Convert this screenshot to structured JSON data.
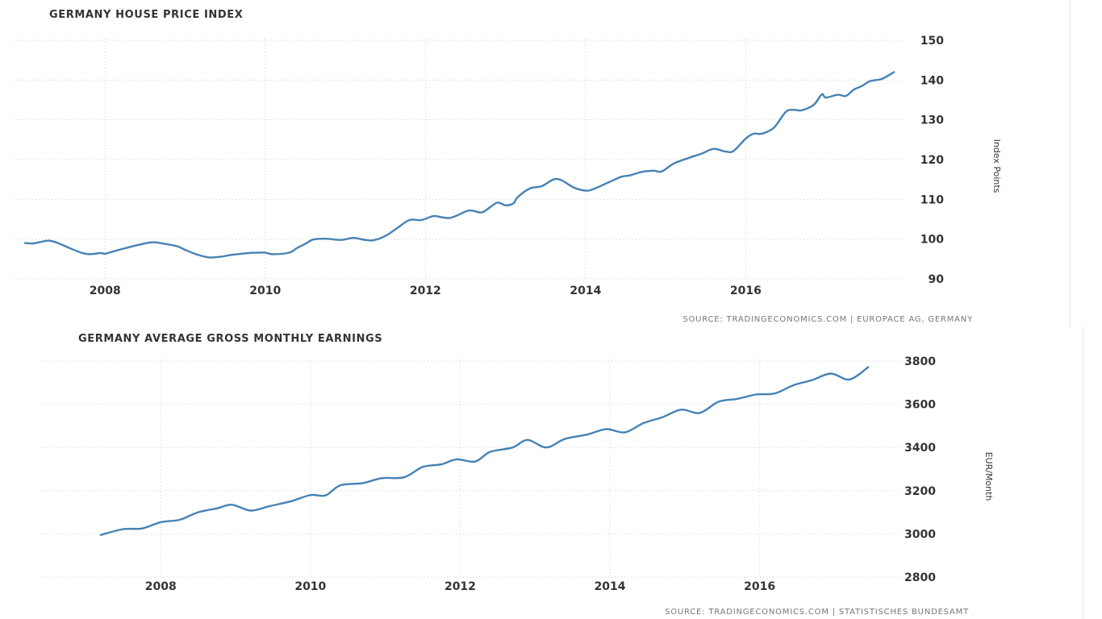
{
  "chart_data": [
    {
      "type": "line",
      "title": "GERMANY HOUSE PRICE INDEX",
      "source": "SOURCE: TRADINGECONOMICS.COM | EUROPACE AG, GERMANY",
      "ylabel": "Index Points",
      "xlabel": "",
      "grid": true,
      "yaxis_side": "right",
      "xlim": [
        2006.95,
        2017.95
      ],
      "ylim": [
        90,
        150
      ],
      "x_ticks": [
        2008,
        2010,
        2012,
        2014,
        2016
      ],
      "x_tick_labels": [
        "2008",
        "2010",
        "2012",
        "2014",
        "2016"
      ],
      "y_ticks": [
        90,
        100,
        110,
        120,
        130,
        140,
        150
      ],
      "y_tick_labels": [
        "90",
        "100",
        "110",
        "120",
        "130",
        "140",
        "150"
      ],
      "line_color": "#4682b4",
      "series": [
        {
          "x": [
            2007.0,
            2007.1,
            2007.2,
            2007.3,
            2007.4,
            2007.55,
            2007.7,
            2007.8,
            2007.95,
            2008.0,
            2008.1,
            2008.25,
            2008.45,
            2008.6,
            2008.75,
            2008.9,
            2009.0,
            2009.15,
            2009.3,
            2009.45,
            2009.6,
            2009.8,
            2009.95,
            2010.0,
            2010.1,
            2010.3,
            2010.4,
            2010.5,
            2010.6,
            2010.75,
            2010.95,
            2011.1,
            2011.25,
            2011.35,
            2011.5,
            2011.65,
            2011.8,
            2011.95,
            2012.1,
            2012.2,
            2012.3,
            2012.4,
            2012.55,
            2012.7,
            2012.8,
            2012.9,
            2013.0,
            2013.1,
            2013.15,
            2013.3,
            2013.45,
            2013.6,
            2013.7,
            2013.85,
            2014.0,
            2014.1,
            2014.3,
            2014.45,
            2014.55,
            2014.7,
            2014.85,
            2014.95,
            2015.1,
            2015.3,
            2015.45,
            2015.6,
            2015.75,
            2015.85,
            2016.0,
            2016.1,
            2016.2,
            2016.35,
            2016.5,
            2016.6,
            2016.7,
            2016.85,
            2016.95,
            2017.0,
            2017.15,
            2017.25,
            2017.35,
            2017.45,
            2017.55,
            2017.7,
            2017.85
          ],
          "values": [
            99,
            98.9,
            99.3,
            99.6,
            99.1,
            97.8,
            96.6,
            96.2,
            96.5,
            96.3,
            96.9,
            97.7,
            98.7,
            99.2,
            98.8,
            98.2,
            97.3,
            96.1,
            95.4,
            95.6,
            96.1,
            96.5,
            96.6,
            96.6,
            96.2,
            96.6,
            97.8,
            98.8,
            99.9,
            100.1,
            99.8,
            100.3,
            99.8,
            99.7,
            100.8,
            102.8,
            104.8,
            104.8,
            105.8,
            105.5,
            105.3,
            106.0,
            107.2,
            106.7,
            107.9,
            109.2,
            108.5,
            109.0,
            110.5,
            112.7,
            113.3,
            115.0,
            114.8,
            113.0,
            112.2,
            112.6,
            114.4,
            115.7,
            116.0,
            116.9,
            117.2,
            117.0,
            119.0,
            120.5,
            121.5,
            122.7,
            122.0,
            122.2,
            125.3,
            126.5,
            126.5,
            128.0,
            132.0,
            132.5,
            132.4,
            133.8,
            136.4,
            135.6,
            136.3,
            136.0,
            137.6,
            138.5,
            139.7,
            140.3,
            142.0
          ]
        }
      ]
    },
    {
      "type": "line",
      "title": "GERMANY AVERAGE GROSS MONTHLY EARNINGS",
      "source": "SOURCE: TRADINGECONOMICS.COM | STATISTISCHES BUNDESAMT",
      "ylabel": "EUR/Month",
      "xlabel": "",
      "grid": true,
      "yaxis_side": "right",
      "xlim": [
        2006.5,
        2017.9
      ],
      "ylim": [
        2800,
        3800
      ],
      "x_ticks": [
        2008,
        2010,
        2012,
        2014,
        2016
      ],
      "x_tick_labels": [
        "2008",
        "2010",
        "2012",
        "2014",
        "2016"
      ],
      "y_ticks": [
        2800,
        3000,
        3200,
        3400,
        3600,
        3800
      ],
      "y_tick_labels": [
        "2800",
        "3000",
        "3200",
        "3400",
        "3600",
        "3800"
      ],
      "line_color": "#4682b4",
      "series": [
        {
          "x": [
            2007.2,
            2007.5,
            2007.75,
            2008.0,
            2008.25,
            2008.5,
            2008.75,
            2008.95,
            2009.2,
            2009.45,
            2009.75,
            2010.0,
            2010.2,
            2010.4,
            2010.7,
            2010.95,
            2011.25,
            2011.5,
            2011.75,
            2011.95,
            2012.2,
            2012.4,
            2012.7,
            2012.9,
            2013.15,
            2013.4,
            2013.7,
            2013.95,
            2014.2,
            2014.45,
            2014.7,
            2014.95,
            2015.2,
            2015.45,
            2015.7,
            2015.95,
            2016.2,
            2016.45,
            2016.7,
            2016.95,
            2017.2,
            2017.45
          ],
          "values": [
            2995,
            3022,
            3025,
            3054,
            3065,
            3100,
            3118,
            3135,
            3108,
            3128,
            3152,
            3180,
            3178,
            3225,
            3235,
            3258,
            3262,
            3310,
            3322,
            3345,
            3335,
            3380,
            3400,
            3435,
            3400,
            3440,
            3460,
            3485,
            3470,
            3513,
            3540,
            3575,
            3560,
            3612,
            3625,
            3645,
            3650,
            3688,
            3712,
            3742,
            3715,
            3772
          ]
        }
      ]
    }
  ]
}
